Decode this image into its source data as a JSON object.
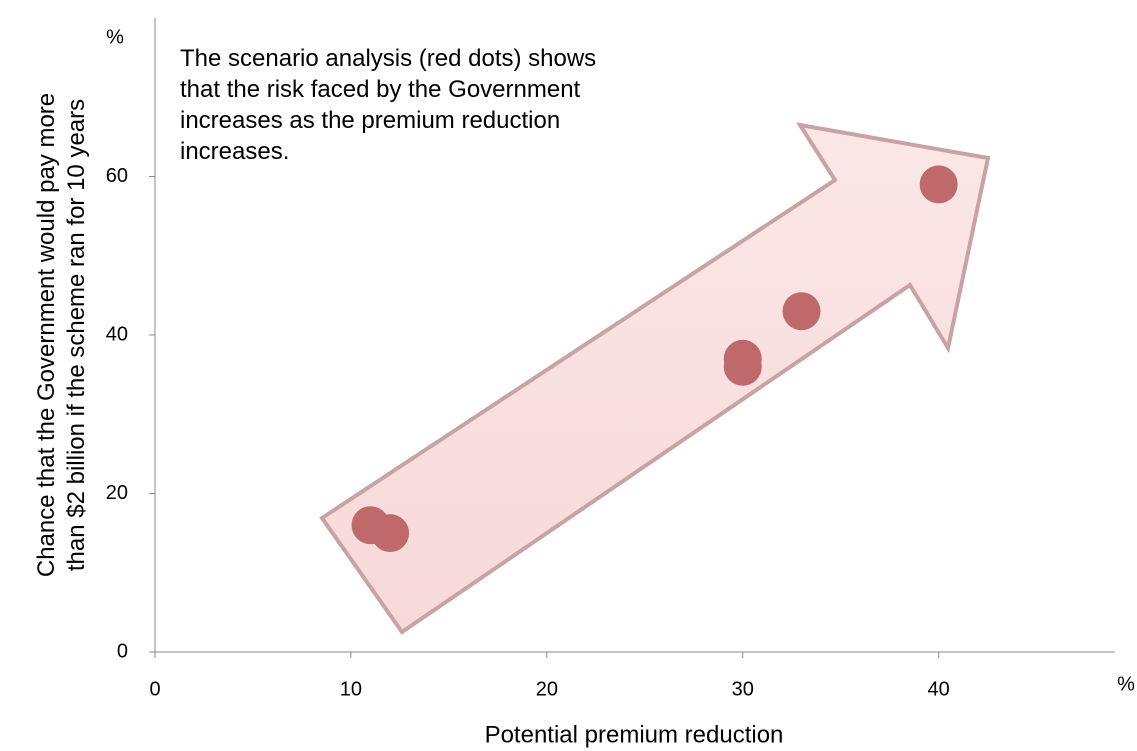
{
  "chart_data": {
    "type": "scatter",
    "x_label": "Potential premium reduction",
    "y_label": [
      "Chance that the Government would pay more",
      "than $2 billion if the scheme ran for 10 years"
    ],
    "x_unit": "%",
    "y_unit": "%",
    "annotation": [
      "The scenario analysis (red dots) shows",
      "that the risk faced by the Government",
      "increases as the premium reduction",
      "increases."
    ],
    "x": [
      11,
      12,
      30,
      30,
      33,
      40
    ],
    "values": [
      16,
      15,
      37,
      36,
      43,
      59
    ],
    "color": "#c0696a",
    "xlim": [
      0,
      49
    ],
    "xticks": [
      0,
      10,
      20,
      30,
      40
    ],
    "ylim": [
      0,
      80
    ],
    "yticks": [
      0,
      20,
      40,
      60
    ]
  }
}
